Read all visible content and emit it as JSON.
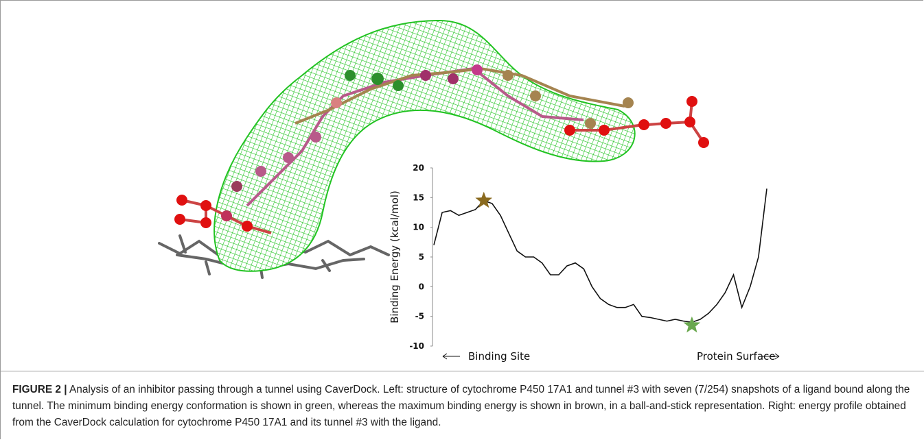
{
  "figure": {
    "label": "FIGURE 2 |",
    "caption": "Analysis of an inhibitor passing through a tunnel using CaverDock. Left: structure of cytochrome P450 17A1 and tunnel #3 with seven (7/254) snapshots of a ligand bound along the tunnel. The minimum binding energy conformation is shown in green, whereas the maximum binding energy is shown in brown, in a ball-and-stick representation. Right: energy profile obtained from the CaverDock calculation for cytochrome P450 17A1 and its tunnel #3 with the ligand."
  },
  "chart_data": {
    "type": "line",
    "y_label": "Binding Energy (kcal/mol)",
    "x_start_label": "Binding Site",
    "x_end_label": "Protein Surface",
    "ylim": [
      -10,
      20
    ],
    "yticks": [
      -10,
      -5,
      0,
      5,
      10,
      15,
      20
    ],
    "series": [
      {
        "color": "#111111",
        "values": [
          7,
          12.5,
          12.8,
          12,
          12.5,
          13,
          14.5,
          14,
          12,
          9,
          6,
          5,
          5,
          4,
          2,
          2,
          3.5,
          4,
          3,
          0,
          -2,
          -3,
          -3.5,
          -3.5,
          -3,
          -5,
          -5.2,
          -5.5,
          -5.8,
          -5.5,
          -5.8,
          -6,
          -5.5,
          -4.5,
          -3,
          -1,
          2,
          -3.5,
          0,
          5,
          16.5
        ]
      },
      {
        "color": "#8a6a1f",
        "marker": "star",
        "values": [
          null,
          null,
          null,
          null,
          null,
          null,
          14.5,
          null,
          null,
          null,
          null,
          null,
          null,
          null,
          null,
          null,
          null,
          null,
          null,
          null,
          null,
          null,
          null,
          null,
          null,
          null,
          null,
          null,
          null,
          null,
          null,
          null,
          null,
          null,
          null,
          null,
          null,
          null,
          null,
          null,
          null
        ]
      },
      {
        "color": "#6aa84f",
        "marker": "star",
        "values": [
          null,
          null,
          null,
          null,
          null,
          null,
          null,
          null,
          null,
          null,
          null,
          null,
          null,
          null,
          null,
          null,
          null,
          null,
          null,
          null,
          null,
          null,
          null,
          null,
          null,
          null,
          null,
          null,
          null,
          null,
          null,
          -6.5,
          null,
          null,
          null,
          null,
          null,
          null,
          null,
          null,
          null
        ]
      }
    ]
  }
}
